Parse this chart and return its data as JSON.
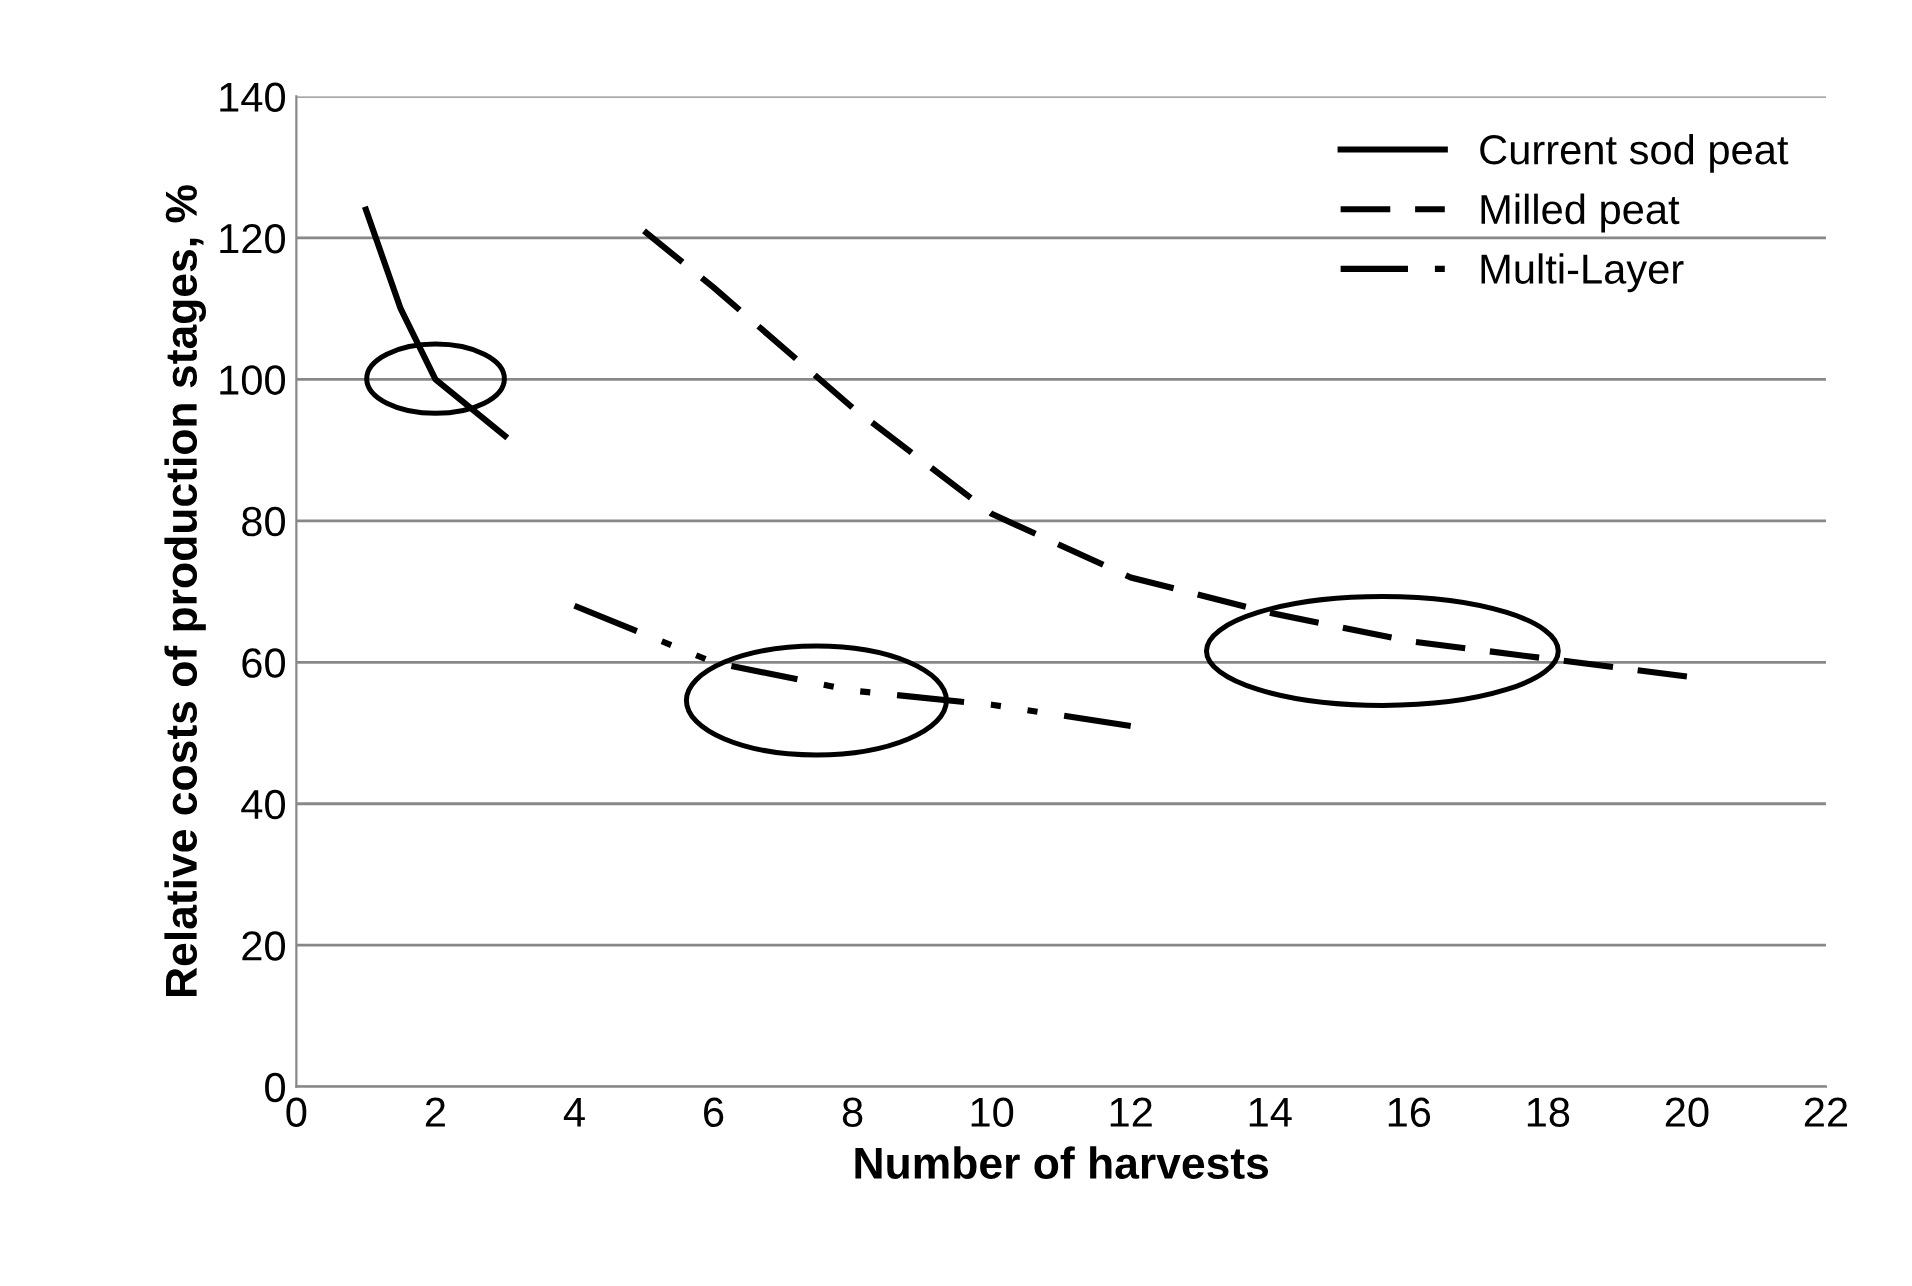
{
  "chart_data": {
    "type": "line",
    "xlabel": "Number of harvests",
    "ylabel": "Relative costs of production stages, %",
    "series": [
      {
        "name": "Current sod peat",
        "color": "#000000",
        "line_style": "solid",
        "x": [
          1,
          1.5,
          2,
          2.5,
          3
        ],
        "values": [
          124,
          110,
          100,
          96,
          92
        ]
      },
      {
        "name": "Milled peat",
        "color": "#000000",
        "line_style": "dashed",
        "x": [
          5,
          6,
          8,
          10,
          12,
          14,
          16,
          18,
          20
        ],
        "values": [
          121,
          113,
          96,
          81,
          72,
          67,
          63,
          60.5,
          58
        ]
      },
      {
        "name": "Multi-Layer",
        "color": "#000000",
        "line_style": "dotted",
        "x": [
          4,
          6,
          8,
          10,
          12
        ],
        "values": [
          68,
          60,
          56,
          54,
          51
        ]
      }
    ],
    "xlim": [
      0,
      22
    ],
    "xticks": [
      0,
      2,
      4,
      6,
      8,
      10,
      12,
      14,
      16,
      18,
      20,
      22
    ],
    "ylim": [
      0,
      140
    ],
    "yticks": [
      0,
      20,
      40,
      60,
      80,
      100,
      120,
      140
    ],
    "grid": "y",
    "legend": "top right",
    "marker": "none"
  }
}
